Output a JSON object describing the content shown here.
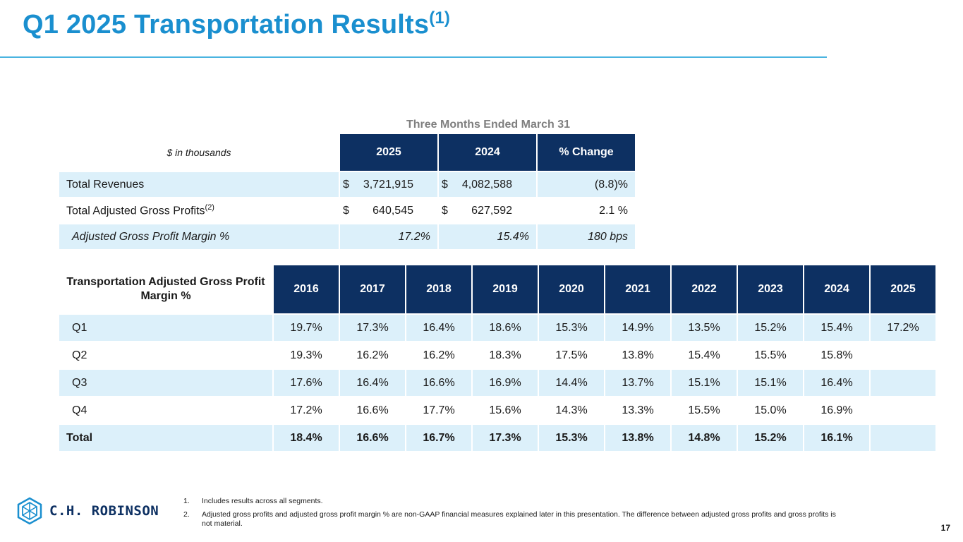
{
  "title": {
    "text": "Q1 2025 Transportation Results",
    "sup": "(1)"
  },
  "summary_table": {
    "caption": "Three Months Ended March 31",
    "unit_label": "$ in thousands",
    "columns": [
      "2025",
      "2024",
      "% Change"
    ],
    "rows": [
      {
        "label": "Total Revenues",
        "label_sup": "",
        "c1_sym": "$",
        "c1": "3,721,915",
        "c2_sym": "$",
        "c2": "4,082,588",
        "c3": "(8.8)%"
      },
      {
        "label": "Total Adjusted Gross Profits",
        "label_sup": "(2)",
        "c1_sym": "$",
        "c1": "640,545",
        "c2_sym": "$",
        "c2": "627,592",
        "c3": "2.1 %"
      },
      {
        "label": "Adjusted Gross Profit Margin %",
        "label_sup": "",
        "c1_sym": "",
        "c1": "17.2%",
        "c2_sym": "",
        "c2": "15.4%",
        "c3": "180 bps"
      }
    ]
  },
  "margin_table": {
    "corner_label": "Transportation Adjusted Gross Profit Margin %",
    "years": [
      "2016",
      "2017",
      "2018",
      "2019",
      "2020",
      "2021",
      "2022",
      "2023",
      "2024",
      "2025"
    ],
    "rows": [
      {
        "label": "Q1",
        "values": [
          "19.7%",
          "17.3%",
          "16.4%",
          "18.6%",
          "15.3%",
          "14.9%",
          "13.5%",
          "15.2%",
          "15.4%",
          "17.2%"
        ]
      },
      {
        "label": "Q2",
        "values": [
          "19.3%",
          "16.2%",
          "16.2%",
          "18.3%",
          "17.5%",
          "13.8%",
          "15.4%",
          "15.5%",
          "15.8%",
          ""
        ]
      },
      {
        "label": "Q3",
        "values": [
          "17.6%",
          "16.4%",
          "16.6%",
          "16.9%",
          "14.4%",
          "13.7%",
          "15.1%",
          "15.1%",
          "16.4%",
          ""
        ]
      },
      {
        "label": "Q4",
        "values": [
          "17.2%",
          "16.6%",
          "17.7%",
          "15.6%",
          "14.3%",
          "13.3%",
          "15.5%",
          "15.0%",
          "16.9%",
          ""
        ]
      },
      {
        "label": "Total",
        "values": [
          "18.4%",
          "16.6%",
          "16.7%",
          "17.3%",
          "15.3%",
          "13.8%",
          "14.8%",
          "15.2%",
          "16.1%",
          ""
        ]
      }
    ]
  },
  "footer": {
    "logo_text": "C.H. ROBINSON",
    "notes": [
      {
        "num": "1.",
        "text": "Includes results across all segments."
      },
      {
        "num": "2.",
        "text": "Adjusted gross profits and adjusted gross profit margin % are non-GAAP financial measures explained later in this presentation. The difference between adjusted gross profits and gross profits is not material."
      }
    ],
    "page_number": "17"
  },
  "colors": {
    "title": "#1a8fcf",
    "header_fill": "#0d3062",
    "row_fill": "#dcf0fa",
    "rule": "#4ab4e0"
  }
}
